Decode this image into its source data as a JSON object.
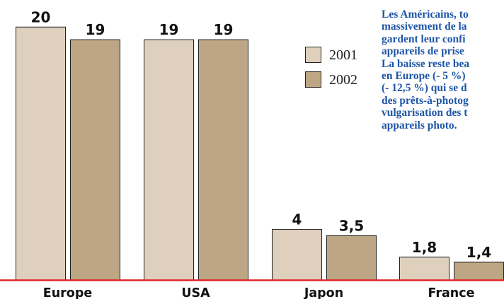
{
  "chart_data": {
    "type": "bar",
    "categories": [
      "Europe",
      "USA",
      "Japon",
      "France"
    ],
    "series": [
      {
        "name": "2001",
        "values": [
          20,
          19,
          4,
          1.8
        ],
        "value_labels": [
          "20",
          "19",
          "4",
          "1,8"
        ],
        "color": "#ded0bc"
      },
      {
        "name": "2002",
        "values": [
          19,
          19,
          3.5,
          1.4
        ],
        "value_labels": [
          "19",
          "19",
          "3,5",
          "1,4"
        ],
        "color": "#bca683"
      }
    ],
    "ylim": [
      0,
      21.3
    ],
    "grid": false,
    "legend": "top-right",
    "baseline_color": "#e02626",
    "bar_outline_color": "#222222"
  },
  "annotation": {
    "lines": [
      "Les Américains, to",
      "massivement de la",
      "gardent leur confi",
      "appareils de prise",
      "La baisse reste bea",
      "en Europe (- 5 %)",
      "(- 12,5 %) qui se d",
      "des prêts-à-photog",
      "vulgarisation des t",
      "appareils photo."
    ],
    "color": "#1f56a8"
  }
}
